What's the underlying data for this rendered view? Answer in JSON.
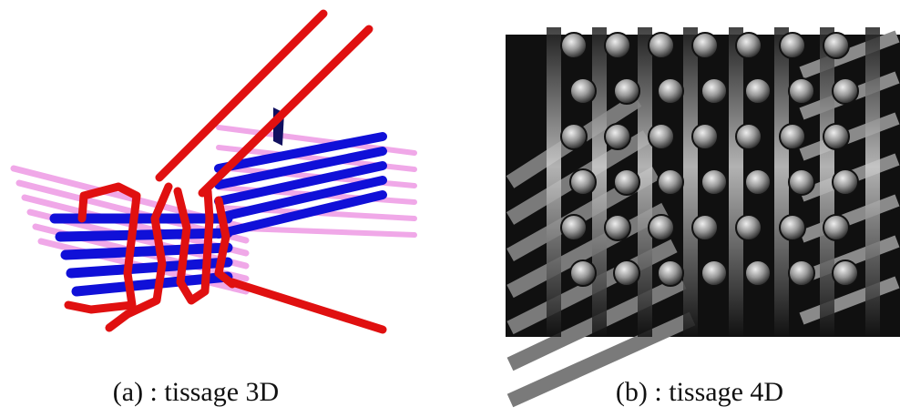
{
  "figures": [
    {
      "caption": "(a) : tissage 3D"
    },
    {
      "caption": "(b) : tissage 4D"
    }
  ]
}
